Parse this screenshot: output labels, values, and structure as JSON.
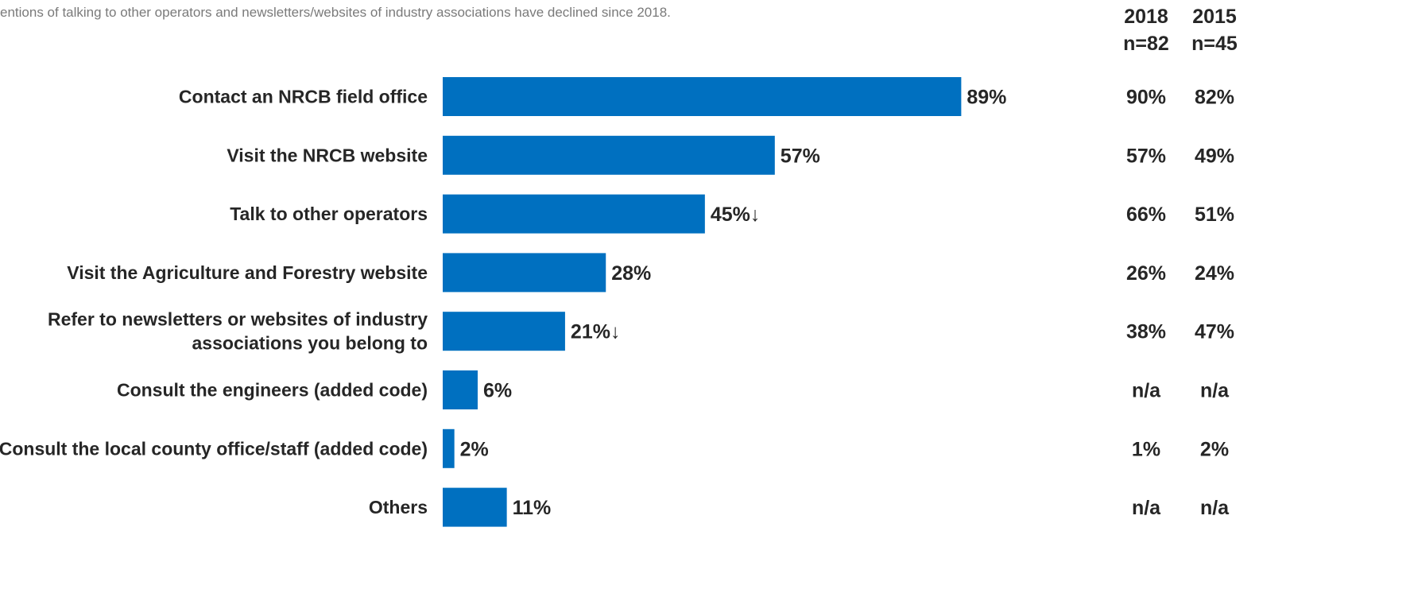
{
  "note": "entions of talking to other operators and newsletters/websites of industry associations have declined since 2018.",
  "comparison_columns": [
    {
      "year": "2018",
      "n": "n=82"
    },
    {
      "year": "2015",
      "n": "n=45"
    }
  ],
  "colors": {
    "bar": "#0070c0",
    "text": "#262626",
    "note": "#7a7a7a"
  },
  "chart_data": {
    "type": "bar",
    "orientation": "horizontal",
    "categories": [
      [
        "Contact an NRCB field office"
      ],
      [
        "Visit the NRCB website"
      ],
      [
        "Talk to other operators"
      ],
      [
        "Visit the Agriculture and Forestry website"
      ],
      [
        "Refer to newsletters or websites of industry",
        "associations you belong to"
      ],
      [
        "Consult the engineers (added code)"
      ],
      [
        "Consult the local county office/staff (added code)"
      ],
      [
        "Others"
      ]
    ],
    "values": [
      89,
      57,
      45,
      28,
      21,
      6,
      2,
      11
    ],
    "value_labels": [
      "89%",
      "57%",
      "45%↓",
      "28%",
      "21%↓",
      "6%",
      "2%",
      "11%"
    ],
    "xlim": [
      0,
      100
    ],
    "comparison": {
      "2018": [
        "90%",
        "57%",
        "66%",
        "26%",
        "38%",
        "n/a",
        "1%",
        "n/a"
      ],
      "2015": [
        "82%",
        "49%",
        "51%",
        "24%",
        "47%",
        "n/a",
        "2%",
        "n/a"
      ]
    }
  }
}
